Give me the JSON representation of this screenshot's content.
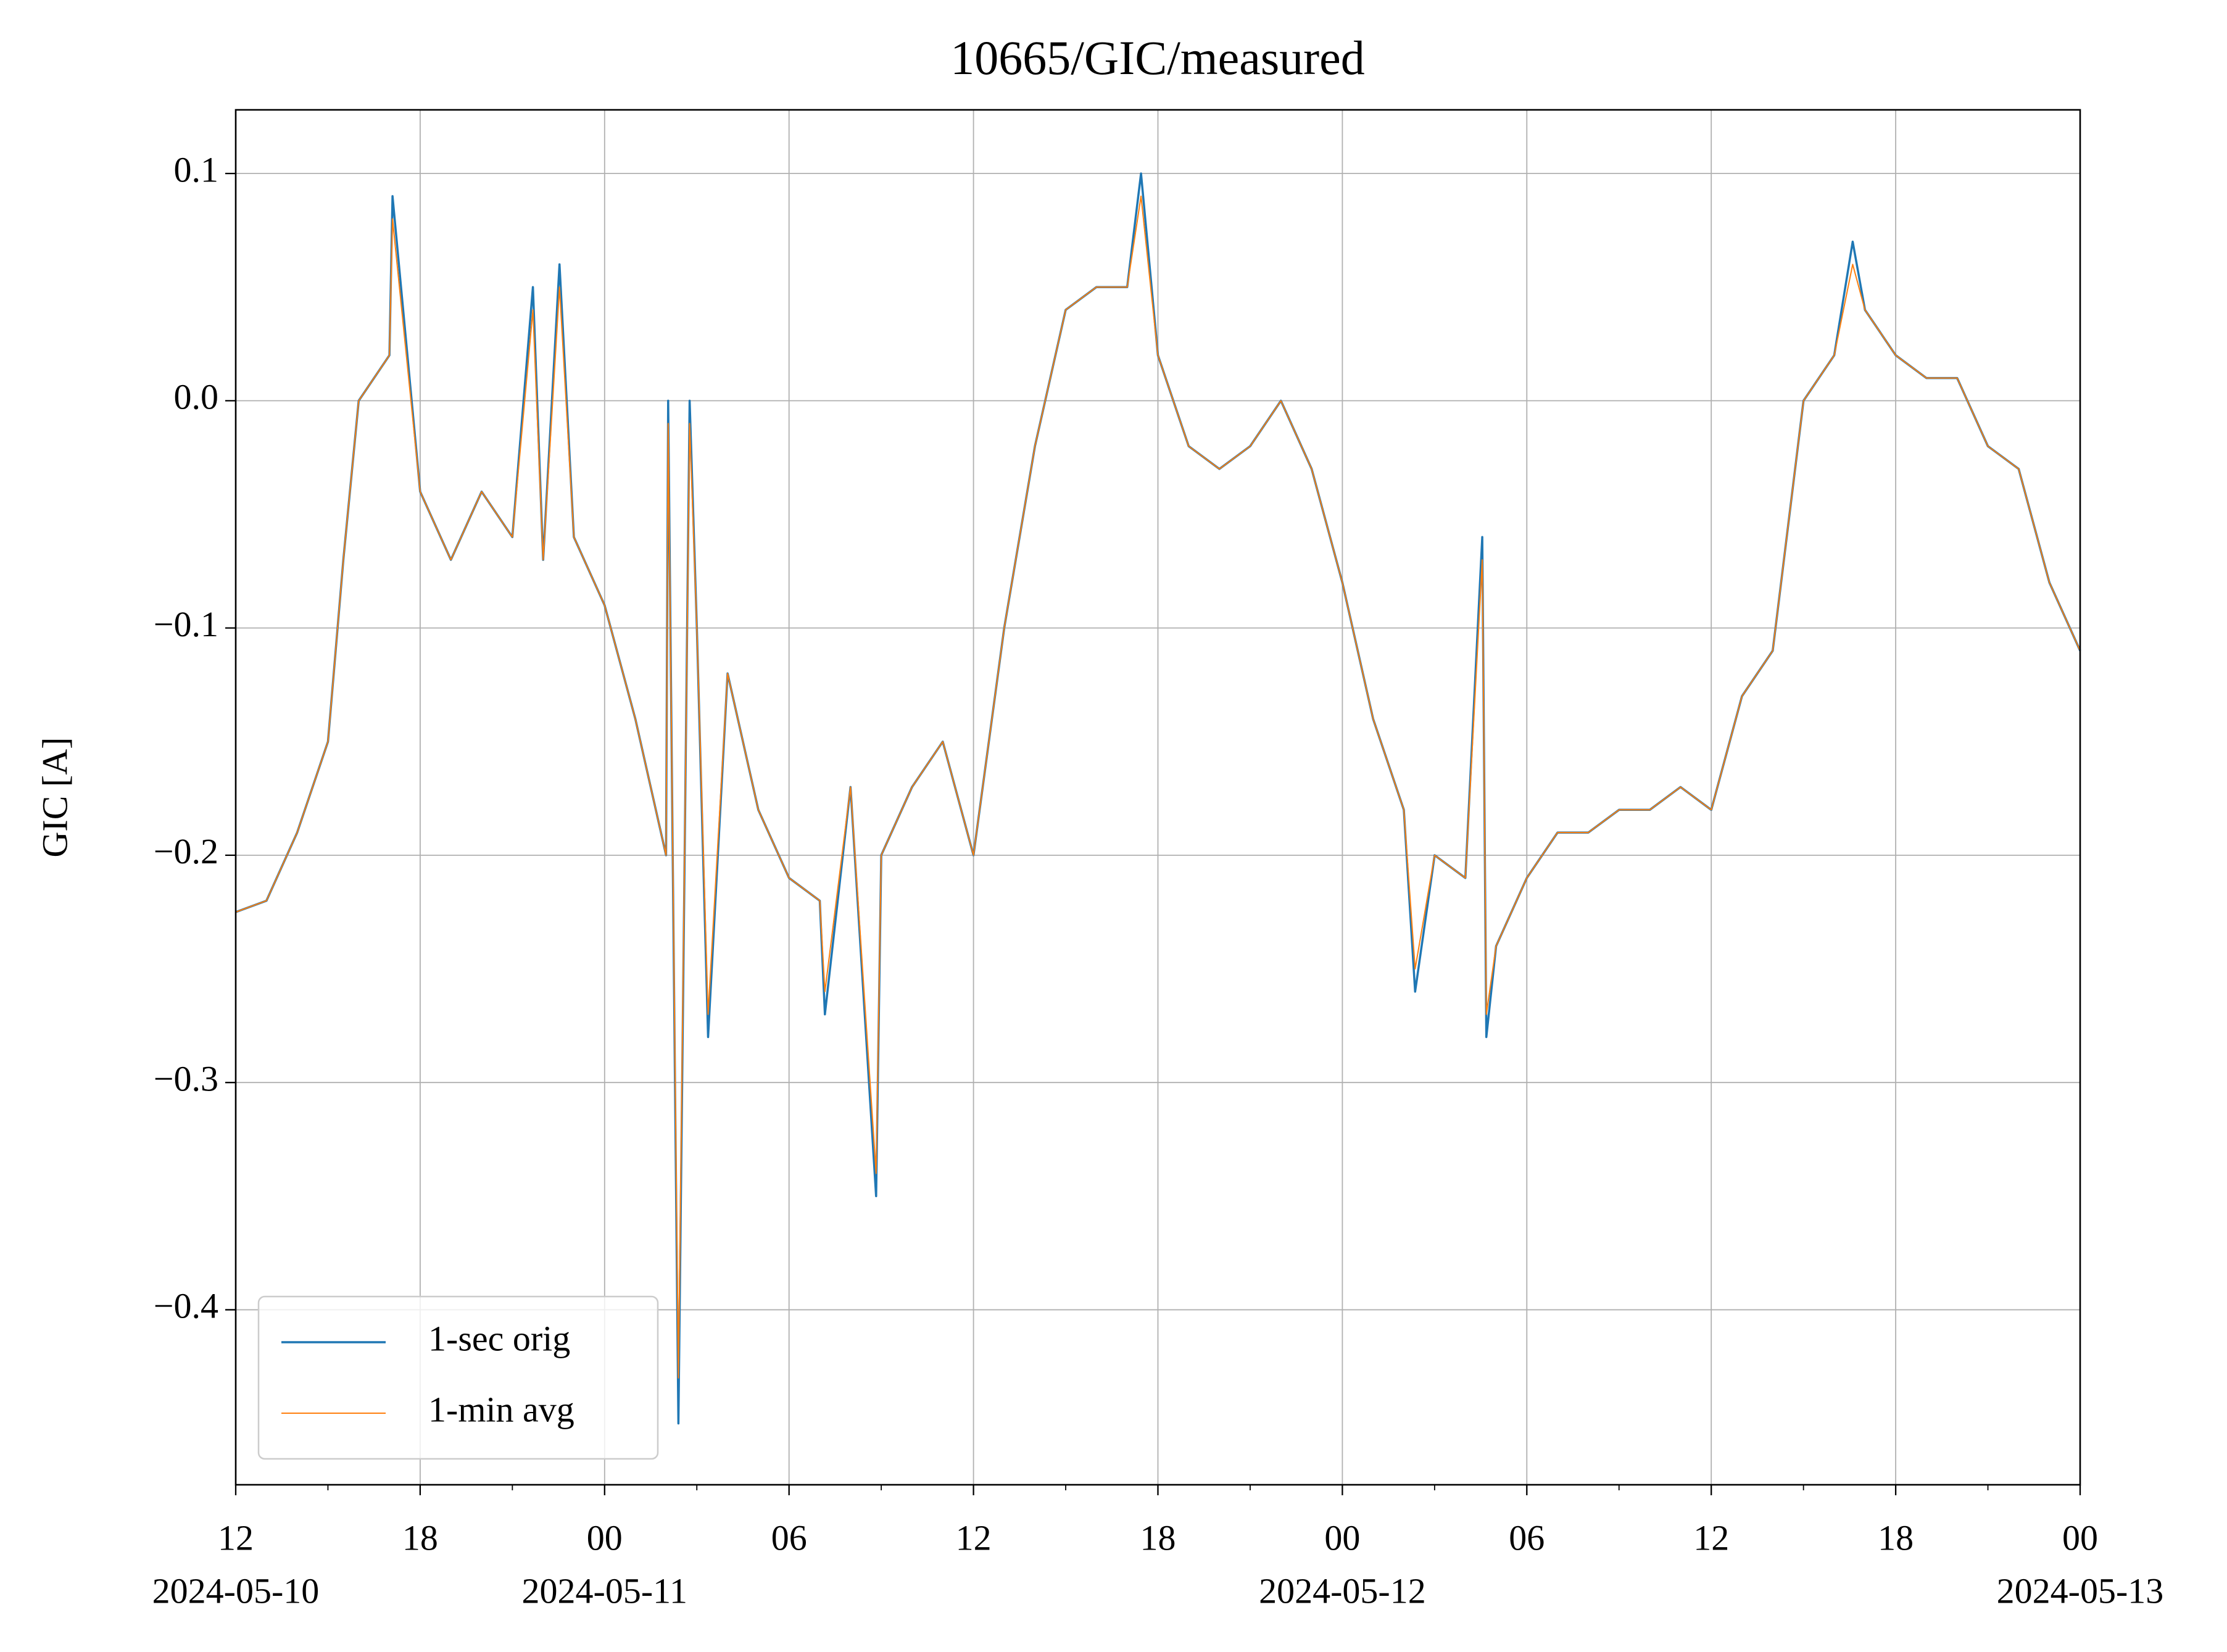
{
  "chart_data": {
    "type": "line",
    "title": "10665/GIC/measured",
    "y_label": "GIC [A]",
    "x": [
      "2024-05-10T12:00",
      "2024-05-10T13:00",
      "2024-05-10T14:00",
      "2024-05-10T15:00",
      "2024-05-10T15:30",
      "2024-05-10T16:00",
      "2024-05-10T17:00",
      "2024-05-10T17:06",
      "2024-05-10T18:00",
      "2024-05-10T19:00",
      "2024-05-10T20:00",
      "2024-05-10T21:00",
      "2024-05-10T21:40",
      "2024-05-10T22:00",
      "2024-05-10T22:32",
      "2024-05-10T23:00",
      "2024-05-11T00:00",
      "2024-05-11T01:00",
      "2024-05-11T02:00",
      "2024-05-11T02:04",
      "2024-05-11T02:24",
      "2024-05-11T02:46",
      "2024-05-11T03:00",
      "2024-05-11T03:22",
      "2024-05-11T04:00",
      "2024-05-11T05:00",
      "2024-05-11T06:00",
      "2024-05-11T07:00",
      "2024-05-11T07:10",
      "2024-05-11T08:00",
      "2024-05-11T08:50",
      "2024-05-11T09:00",
      "2024-05-11T10:00",
      "2024-05-11T11:00",
      "2024-05-11T12:00",
      "2024-05-11T13:00",
      "2024-05-11T14:00",
      "2024-05-11T15:00",
      "2024-05-11T16:00",
      "2024-05-11T17:00",
      "2024-05-11T17:27",
      "2024-05-11T18:00",
      "2024-05-11T19:00",
      "2024-05-11T20:00",
      "2024-05-11T21:00",
      "2024-05-11T22:00",
      "2024-05-11T23:00",
      "2024-05-12T00:00",
      "2024-05-12T01:00",
      "2024-05-12T02:00",
      "2024-05-12T02:22",
      "2024-05-12T03:00",
      "2024-05-12T04:00",
      "2024-05-12T04:33",
      "2024-05-12T04:41",
      "2024-05-12T05:00",
      "2024-05-12T06:00",
      "2024-05-12T07:00",
      "2024-05-12T08:00",
      "2024-05-12T09:00",
      "2024-05-12T10:00",
      "2024-05-12T11:00",
      "2024-05-12T12:00",
      "2024-05-12T13:00",
      "2024-05-12T14:00",
      "2024-05-12T15:00",
      "2024-05-12T16:00",
      "2024-05-12T16:36",
      "2024-05-12T17:00",
      "2024-05-12T18:00",
      "2024-05-12T19:00",
      "2024-05-12T20:00",
      "2024-05-12T21:00",
      "2024-05-12T22:00",
      "2024-05-12T23:00",
      "2024-05-13T00:00"
    ],
    "series": [
      {
        "name": "1-sec orig",
        "color": "#1f77b4",
        "values": [
          -0.225,
          -0.22,
          -0.19,
          -0.15,
          -0.07,
          0.0,
          0.02,
          0.09,
          -0.04,
          -0.07,
          -0.04,
          -0.06,
          0.05,
          -0.07,
          0.06,
          -0.06,
          -0.09,
          -0.14,
          -0.2,
          0.0,
          -0.45,
          0.0,
          -0.1,
          -0.28,
          -0.12,
          -0.18,
          -0.21,
          -0.22,
          -0.27,
          -0.17,
          -0.35,
          -0.2,
          -0.17,
          -0.15,
          -0.2,
          -0.1,
          -0.02,
          0.04,
          0.05,
          0.05,
          0.1,
          0.02,
          -0.02,
          -0.03,
          -0.02,
          0.0,
          -0.03,
          -0.08,
          -0.14,
          -0.18,
          -0.26,
          -0.2,
          -0.21,
          -0.06,
          -0.28,
          -0.24,
          -0.21,
          -0.19,
          -0.19,
          -0.18,
          -0.18,
          -0.17,
          -0.18,
          -0.13,
          -0.11,
          0.0,
          0.02,
          0.07,
          0.04,
          0.02,
          0.01,
          0.01,
          -0.02,
          -0.03,
          -0.08,
          -0.11
        ]
      },
      {
        "name": "1-min avg",
        "color": "#ff7f0e",
        "values": [
          -0.225,
          -0.22,
          -0.19,
          -0.15,
          -0.07,
          0.0,
          0.02,
          0.08,
          -0.04,
          -0.07,
          -0.04,
          -0.06,
          0.04,
          -0.07,
          0.05,
          -0.06,
          -0.09,
          -0.14,
          -0.2,
          -0.01,
          -0.43,
          -0.01,
          -0.1,
          -0.27,
          -0.12,
          -0.18,
          -0.21,
          -0.22,
          -0.26,
          -0.17,
          -0.34,
          -0.2,
          -0.17,
          -0.15,
          -0.2,
          -0.1,
          -0.02,
          0.04,
          0.05,
          0.05,
          0.09,
          0.02,
          -0.02,
          -0.03,
          -0.02,
          0.0,
          -0.03,
          -0.08,
          -0.14,
          -0.18,
          -0.25,
          -0.2,
          -0.21,
          -0.07,
          -0.27,
          -0.24,
          -0.21,
          -0.19,
          -0.19,
          -0.18,
          -0.18,
          -0.17,
          -0.18,
          -0.13,
          -0.11,
          0.0,
          0.02,
          0.06,
          0.04,
          0.02,
          0.01,
          0.01,
          -0.02,
          -0.03,
          -0.08,
          -0.11
        ]
      }
    ],
    "xlim": [
      "2024-05-10T12:00",
      "2024-05-13T00:00"
    ],
    "xticks": [
      {
        "value": "2024-05-10T12:00",
        "label": "12"
      },
      {
        "value": "2024-05-10T18:00",
        "label": "18"
      },
      {
        "value": "2024-05-11T00:00",
        "label": "00"
      },
      {
        "value": "2024-05-11T06:00",
        "label": "06"
      },
      {
        "value": "2024-05-11T12:00",
        "label": "12"
      },
      {
        "value": "2024-05-11T18:00",
        "label": "18"
      },
      {
        "value": "2024-05-12T00:00",
        "label": "00"
      },
      {
        "value": "2024-05-12T06:00",
        "label": "06"
      },
      {
        "value": "2024-05-12T12:00",
        "label": "12"
      },
      {
        "value": "2024-05-12T18:00",
        "label": "18"
      },
      {
        "value": "2024-05-13T00:00",
        "label": "00"
      }
    ],
    "xtick_dates": [
      {
        "value": "2024-05-10T12:00",
        "label": "2024-05-10"
      },
      {
        "value": "2024-05-11T00:00",
        "label": "2024-05-11"
      },
      {
        "value": "2024-05-12T00:00",
        "label": "2024-05-12"
      },
      {
        "value": "2024-05-13T00:00",
        "label": "2024-05-13"
      }
    ],
    "xminorticks": [
      "2024-05-10T15:00",
      "2024-05-10T21:00",
      "2024-05-11T03:00",
      "2024-05-11T09:00",
      "2024-05-11T15:00",
      "2024-05-11T21:00",
      "2024-05-12T03:00",
      "2024-05-12T09:00",
      "2024-05-12T15:00",
      "2024-05-12T21:00"
    ],
    "ylim": [
      -0.477,
      0.128
    ],
    "yticks": [
      {
        "value": 0.1,
        "label": "0.1"
      },
      {
        "value": 0.0,
        "label": "0.0"
      },
      {
        "value": -0.1,
        "label": "−0.1"
      },
      {
        "value": -0.2,
        "label": "−0.2"
      },
      {
        "value": -0.3,
        "label": "−0.3"
      },
      {
        "value": -0.4,
        "label": "−0.4"
      }
    ],
    "grid": true,
    "legend": "lower left"
  }
}
